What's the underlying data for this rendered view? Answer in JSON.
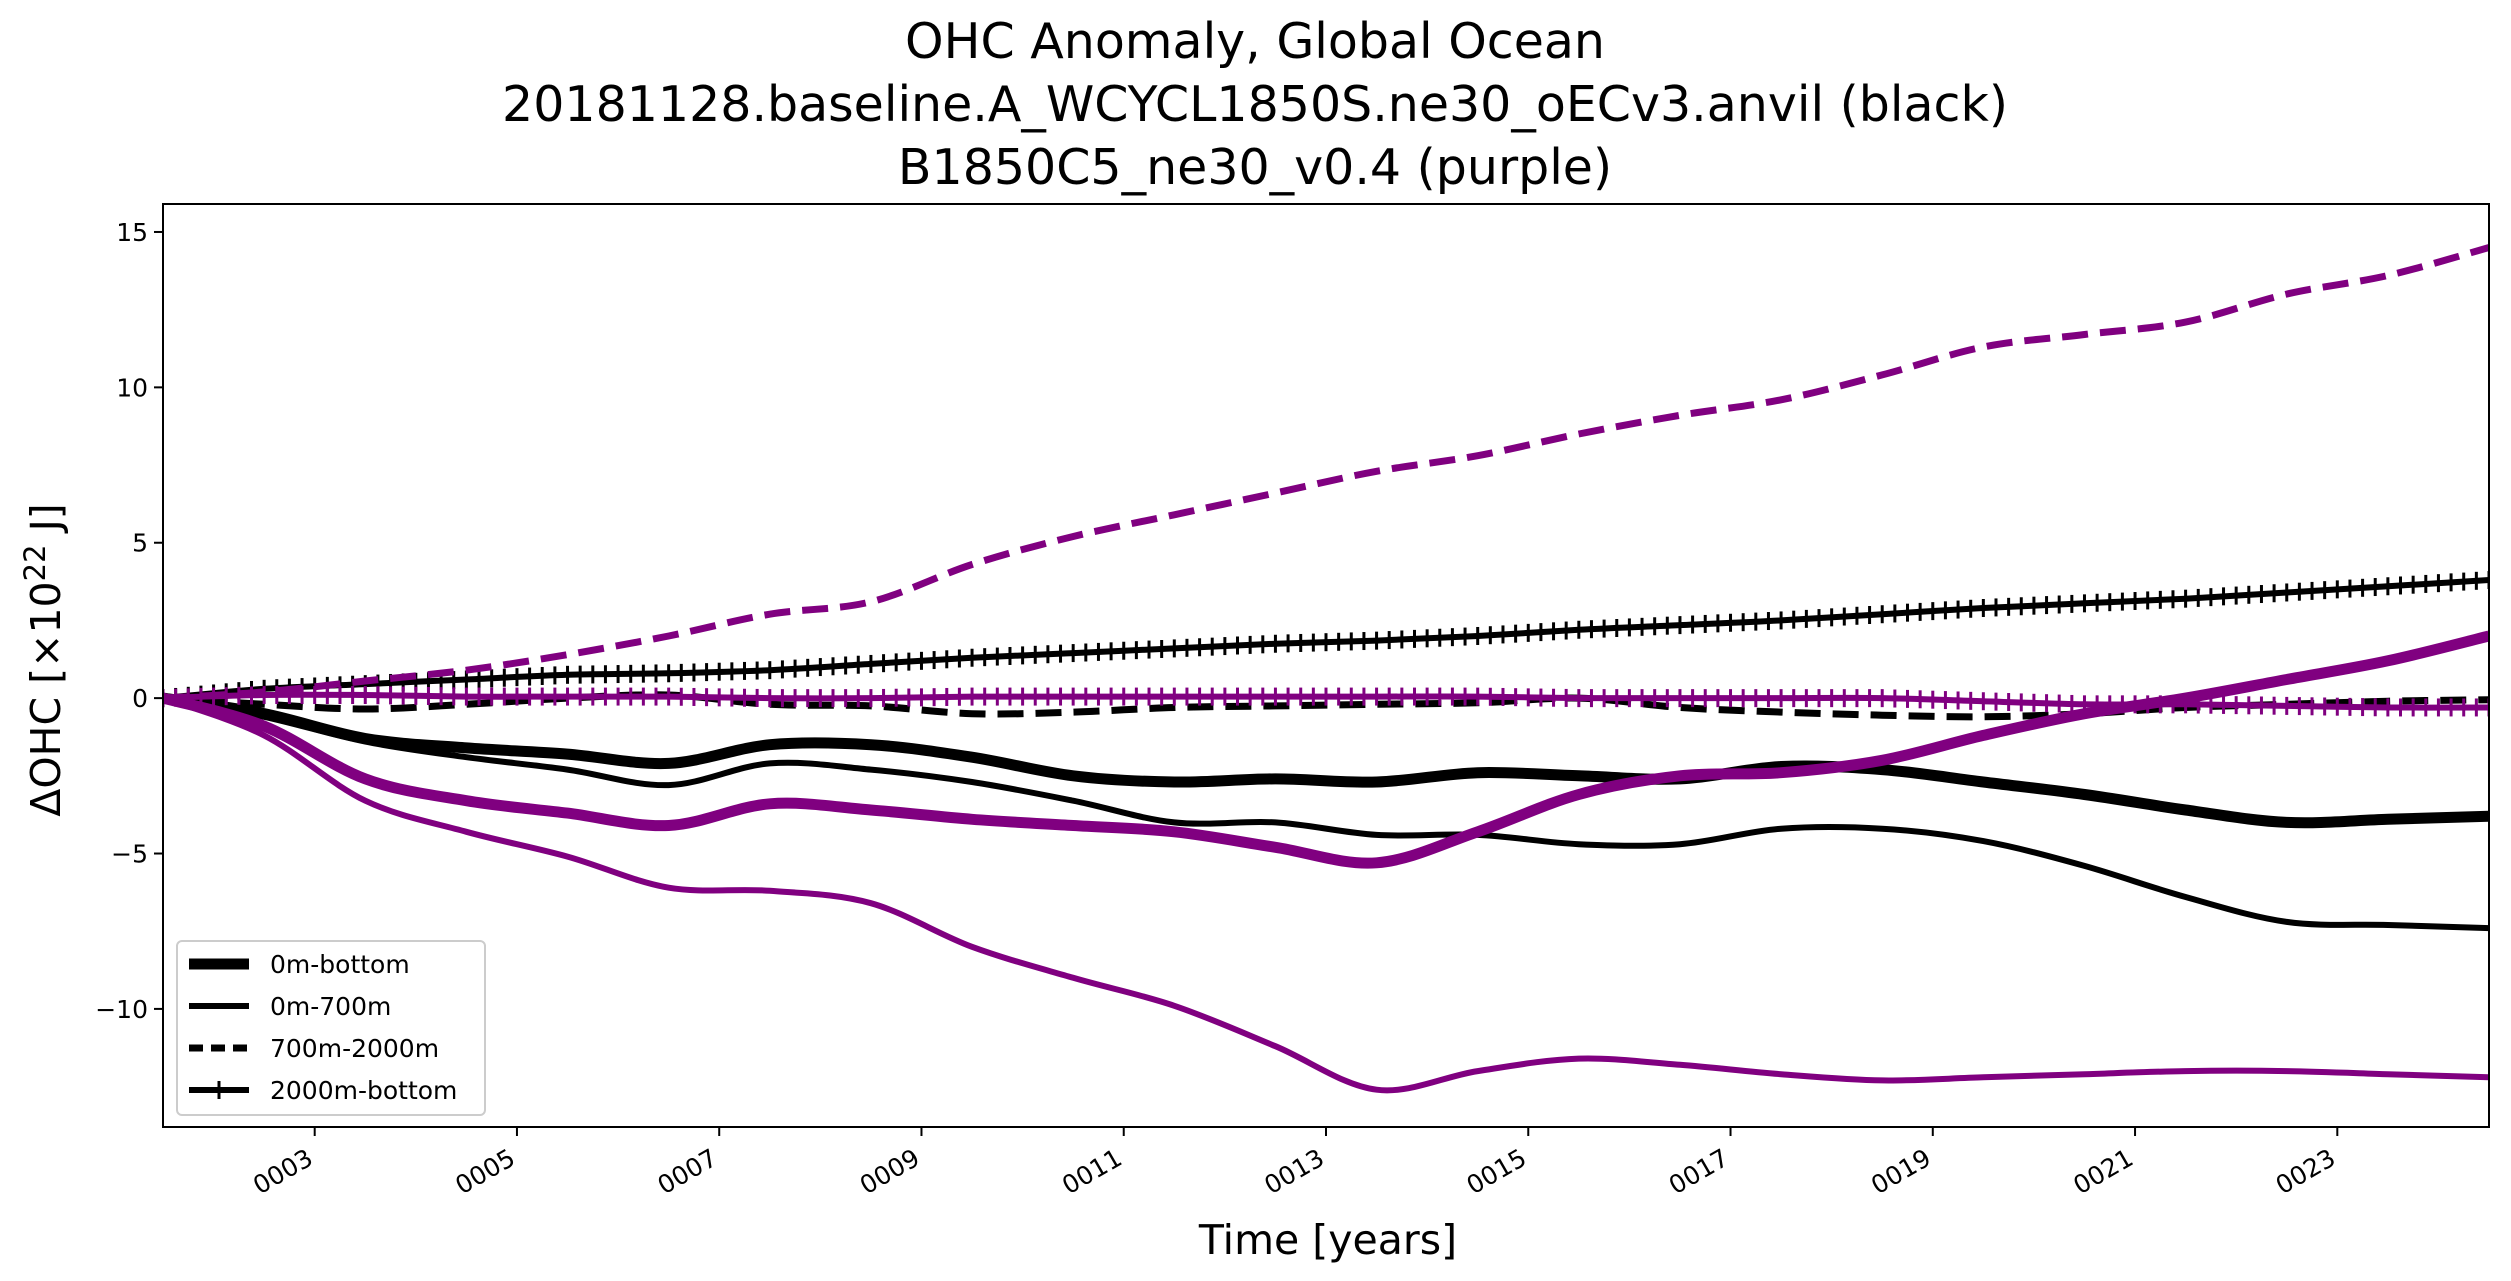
{
  "chart_data": {
    "type": "line",
    "title": [
      "OHC Anomaly, Global Ocean",
      "20181128.baseline.A_WCYCL1850S.ne30_oECv3.anvil (black)",
      "B1850C5_ne30_v0.4 (purple)"
    ],
    "xlabel": "Time [years]",
    "ylabel_prefix": "ΔOHC [×10",
    "ylabel_exp": "22",
    "ylabel_suffix": " J]",
    "xlim": [
      1.5,
      24.5
    ],
    "ylim": [
      -13.8,
      15.9
    ],
    "xticks": [
      3,
      5,
      7,
      9,
      11,
      13,
      15,
      17,
      19,
      21,
      23
    ],
    "xtick_labels": [
      "0003",
      "0005",
      "0007",
      "0009",
      "0011",
      "0013",
      "0015",
      "0017",
      "0019",
      "0021",
      "0023"
    ],
    "yticks": [
      -10,
      -5,
      0,
      5,
      10,
      15
    ],
    "ytick_labels": [
      "−10",
      "−5",
      "0",
      "5",
      "10",
      "15"
    ],
    "grid": false,
    "legend_position": "lower-left",
    "legend": [
      {
        "label": "0m-bottom",
        "style": "thick"
      },
      {
        "label": "0m-700m",
        "style": "solid"
      },
      {
        "label": "700m-2000m",
        "style": "dashed"
      },
      {
        "label": "2000m-bottom",
        "style": "plus"
      }
    ],
    "colors": {
      "black_run": "#000000",
      "purple_run": "#800080"
    },
    "series": [
      {
        "run": "black",
        "layer": "0m-bottom",
        "style": "thick",
        "x": [
          1.5,
          2.5,
          3.5,
          4.5,
          5.5,
          6.5,
          7.5,
          8.5,
          9.5,
          10.5,
          11.5,
          12.5,
          13.5,
          14.5,
          15.5,
          16.5,
          17.5,
          18.5,
          19.5,
          20.5,
          21.5,
          22.5,
          23.5,
          24.5
        ],
        "y": [
          0.0,
          -0.5,
          -1.3,
          -1.6,
          -1.8,
          -2.1,
          -1.5,
          -1.5,
          -1.9,
          -2.5,
          -2.7,
          -2.6,
          -2.7,
          -2.4,
          -2.5,
          -2.6,
          -2.2,
          -2.3,
          -2.7,
          -3.1,
          -3.6,
          -4.0,
          -3.9,
          -3.8
        ]
      },
      {
        "run": "black",
        "layer": "0m-700m",
        "style": "solid",
        "x": [
          1.5,
          2.5,
          3.5,
          4.5,
          5.5,
          6.5,
          7.5,
          8.5,
          9.5,
          10.5,
          11.5,
          12.5,
          13.5,
          14.5,
          15.5,
          16.5,
          17.5,
          18.5,
          19.5,
          20.5,
          21.5,
          22.5,
          23.5,
          24.5
        ],
        "y": [
          0.0,
          -0.6,
          -1.4,
          -1.9,
          -2.3,
          -2.8,
          -2.1,
          -2.3,
          -2.7,
          -3.3,
          -4.0,
          -4.0,
          -4.4,
          -4.4,
          -4.7,
          -4.7,
          -4.2,
          -4.2,
          -4.6,
          -5.4,
          -6.4,
          -7.2,
          -7.3,
          -7.4
        ]
      },
      {
        "run": "black",
        "layer": "700m-2000m",
        "style": "dashed",
        "x": [
          1.5,
          2.5,
          3.5,
          4.5,
          5.5,
          6.5,
          7.5,
          8.5,
          9.5,
          10.5,
          11.5,
          12.5,
          13.5,
          14.5,
          15.5,
          16.5,
          17.5,
          18.5,
          19.5,
          20.5,
          21.5,
          22.5,
          23.5,
          24.5
        ],
        "y": [
          0.0,
          -0.2,
          -0.35,
          -0.2,
          0.0,
          0.1,
          -0.2,
          -0.25,
          -0.5,
          -0.45,
          -0.3,
          -0.25,
          -0.2,
          -0.15,
          0.0,
          -0.3,
          -0.45,
          -0.55,
          -0.6,
          -0.5,
          -0.3,
          -0.2,
          -0.1,
          -0.05
        ]
      },
      {
        "run": "black",
        "layer": "2000m-bottom",
        "style": "plus",
        "x": [
          1.5,
          2.5,
          3.5,
          4.5,
          5.5,
          6.5,
          7.5,
          8.5,
          9.5,
          10.5,
          11.5,
          12.5,
          13.5,
          14.5,
          15.5,
          16.5,
          17.5,
          18.5,
          19.5,
          20.5,
          21.5,
          22.5,
          23.5,
          24.5
        ],
        "y": [
          0.0,
          0.3,
          0.45,
          0.6,
          0.75,
          0.8,
          0.9,
          1.1,
          1.3,
          1.45,
          1.6,
          1.75,
          1.85,
          2.0,
          2.2,
          2.35,
          2.5,
          2.7,
          2.9,
          3.05,
          3.2,
          3.4,
          3.6,
          3.8
        ]
      },
      {
        "run": "purple",
        "layer": "0m-bottom",
        "style": "thick",
        "x": [
          1.5,
          2.5,
          3.5,
          4.5,
          5.5,
          6.5,
          7.5,
          8.5,
          9.5,
          10.5,
          11.5,
          12.5,
          13.5,
          14.5,
          15.5,
          16.5,
          17.5,
          18.5,
          19.5,
          20.5,
          21.5,
          22.5,
          23.5,
          24.5
        ],
        "y": [
          0.0,
          -0.9,
          -2.6,
          -3.3,
          -3.7,
          -4.1,
          -3.4,
          -3.6,
          -3.9,
          -4.1,
          -4.3,
          -4.8,
          -5.3,
          -4.3,
          -3.1,
          -2.5,
          -2.4,
          -2.0,
          -1.2,
          -0.5,
          0.0,
          0.6,
          1.2,
          2.0
        ]
      },
      {
        "run": "purple",
        "layer": "0m-700m",
        "style": "solid",
        "x": [
          1.5,
          2.5,
          3.5,
          4.5,
          5.5,
          6.5,
          7.5,
          8.5,
          9.5,
          10.5,
          11.5,
          12.5,
          13.5,
          14.5,
          15.5,
          16.5,
          17.5,
          18.5,
          19.5,
          20.5,
          21.5,
          22.5,
          23.5,
          24.5
        ],
        "y": [
          0.0,
          -1.2,
          -3.3,
          -4.3,
          -5.1,
          -6.1,
          -6.2,
          -6.6,
          -8.0,
          -9.0,
          -9.9,
          -11.2,
          -12.6,
          -12.0,
          -11.6,
          -11.8,
          -12.1,
          -12.3,
          -12.2,
          -12.1,
          -12.0,
          -12.0,
          -12.1,
          -12.2
        ]
      },
      {
        "run": "purple",
        "layer": "700m-2000m",
        "style": "dashed",
        "x": [
          1.5,
          2.5,
          3.5,
          4.5,
          5.5,
          6.5,
          7.5,
          8.5,
          9.5,
          10.5,
          11.5,
          12.5,
          13.5,
          14.5,
          15.5,
          16.5,
          17.5,
          18.5,
          19.5,
          20.5,
          21.5,
          22.5,
          23.5,
          24.5
        ],
        "y": [
          0.0,
          0.2,
          0.55,
          0.9,
          1.4,
          2.0,
          2.7,
          3.1,
          4.3,
          5.2,
          5.9,
          6.6,
          7.3,
          7.8,
          8.5,
          9.1,
          9.6,
          10.4,
          11.3,
          11.7,
          12.1,
          13.0,
          13.6,
          14.5
        ]
      },
      {
        "run": "purple",
        "layer": "2000m-bottom",
        "style": "plus",
        "x": [
          1.5,
          2.5,
          3.5,
          4.5,
          5.5,
          6.5,
          7.5,
          8.5,
          9.5,
          10.5,
          11.5,
          12.5,
          13.5,
          14.5,
          15.5,
          16.5,
          17.5,
          18.5,
          19.5,
          20.5,
          21.5,
          22.5,
          23.5,
          24.5
        ],
        "y": [
          0.0,
          0.1,
          0.1,
          0.05,
          0.05,
          0.05,
          0.0,
          0.0,
          0.05,
          0.05,
          0.05,
          0.05,
          0.05,
          0.05,
          0.0,
          0.0,
          0.0,
          0.0,
          -0.1,
          -0.2,
          -0.2,
          -0.25,
          -0.3,
          -0.3
        ]
      }
    ]
  }
}
